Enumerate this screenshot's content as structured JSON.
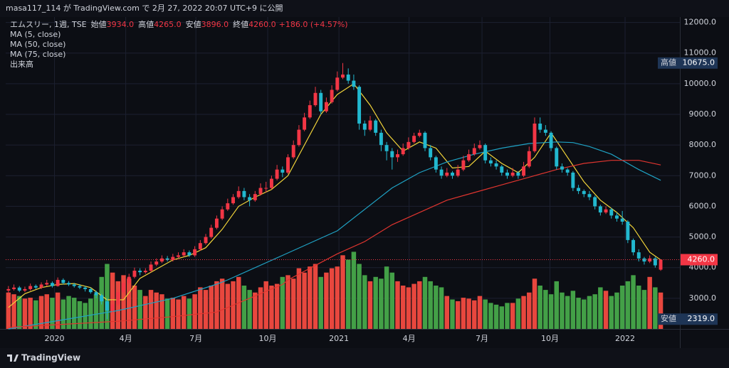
{
  "chart_data": {
    "type": "candlestick",
    "header": "masa117_114 が TradingView.com で 2月 27, 2022 20:07 UTC+9 に公開",
    "title": "エムスリー, 1週, TSE",
    "ohlc_legend": [
      {
        "label": "始値",
        "value": "3934.0"
      },
      {
        "label": "高値",
        "value": "4265.0"
      },
      {
        "label": "安値",
        "value": "3896.0"
      },
      {
        "label": "終値",
        "value": "4260.0"
      }
    ],
    "change": "+186.0 (+4.57%)",
    "up_color": "#f23645",
    "down_color": "#22b8cf",
    "candles": [
      [
        3250,
        3400,
        3150,
        3300
      ],
      [
        3300,
        3450,
        3250,
        3350
      ],
      [
        3350,
        3400,
        3200,
        3250
      ],
      [
        3250,
        3380,
        3200,
        3300
      ],
      [
        3300,
        3480,
        3250,
        3400
      ],
      [
        3400,
        3450,
        3300,
        3350
      ],
      [
        3350,
        3520,
        3300,
        3450
      ],
      [
        3450,
        3600,
        3400,
        3500
      ],
      [
        3500,
        3550,
        3350,
        3400
      ],
      [
        3400,
        3680,
        3380,
        3600
      ],
      [
        3600,
        3650,
        3450,
        3500
      ],
      [
        3500,
        3560,
        3400,
        3450
      ],
      [
        3450,
        3500,
        3350,
        3400
      ],
      [
        3400,
        3460,
        3300,
        3350
      ],
      [
        3350,
        3400,
        3220,
        3300
      ],
      [
        3300,
        3350,
        3150,
        3200
      ],
      [
        3200,
        3250,
        3000,
        3100
      ],
      [
        3100,
        3150,
        2800,
        2900
      ],
      [
        2900,
        3000,
        2319,
        2600
      ],
      [
        2600,
        2950,
        2500,
        2800
      ],
      [
        2800,
        3300,
        2750,
        3200
      ],
      [
        3200,
        3600,
        3150,
        3500
      ],
      [
        3500,
        3800,
        3450,
        3700
      ],
      [
        3700,
        4000,
        3650,
        3900
      ],
      [
        3900,
        3980,
        3750,
        3850
      ],
      [
        3850,
        3980,
        3800,
        3900
      ],
      [
        3900,
        4200,
        3850,
        4100
      ],
      [
        4100,
        4300,
        4050,
        4200
      ],
      [
        4200,
        4400,
        4150,
        4300
      ],
      [
        4300,
        4380,
        4200,
        4250
      ],
      [
        4250,
        4450,
        4200,
        4350
      ],
      [
        4350,
        4500,
        4300,
        4400
      ],
      [
        4400,
        4600,
        4350,
        4500
      ],
      [
        4500,
        4560,
        4350,
        4400
      ],
      [
        4400,
        4700,
        4350,
        4600
      ],
      [
        4600,
        4900,
        4550,
        4800
      ],
      [
        4800,
        5100,
        4750,
        5000
      ],
      [
        5000,
        5400,
        4950,
        5300
      ],
      [
        5300,
        5700,
        5250,
        5600
      ],
      [
        5600,
        6000,
        5550,
        5900
      ],
      [
        5900,
        6250,
        5850,
        6100
      ],
      [
        6100,
        6400,
        6050,
        6300
      ],
      [
        6300,
        6650,
        6250,
        6500
      ],
      [
        6500,
        6600,
        6200,
        6300
      ],
      [
        6300,
        6400,
        6000,
        6200
      ],
      [
        6200,
        6500,
        6150,
        6400
      ],
      [
        6400,
        6750,
        6350,
        6600
      ],
      [
        6600,
        6800,
        6450,
        6600
      ],
      [
        6600,
        7000,
        6550,
        6900
      ],
      [
        6900,
        7350,
        6850,
        7200
      ],
      [
        7200,
        7300,
        6950,
        7100
      ],
      [
        7100,
        7700,
        7050,
        7600
      ],
      [
        7600,
        8150,
        7550,
        8000
      ],
      [
        8000,
        8650,
        7950,
        8500
      ],
      [
        8500,
        9050,
        8450,
        8900
      ],
      [
        8900,
        9450,
        8850,
        9300
      ],
      [
        9300,
        9900,
        9250,
        9700
      ],
      [
        9700,
        9800,
        9000,
        9100
      ],
      [
        9100,
        9550,
        9050,
        9400
      ],
      [
        9400,
        9950,
        9350,
        9800
      ],
      [
        9800,
        10400,
        9750,
        10200
      ],
      [
        10200,
        10675,
        10150,
        10300
      ],
      [
        10300,
        10500,
        10000,
        10100
      ],
      [
        10100,
        10300,
        9800,
        9900
      ],
      [
        9900,
        9950,
        8500,
        8700
      ],
      [
        8700,
        8800,
        8300,
        8500
      ],
      [
        8500,
        8950,
        8450,
        8800
      ],
      [
        8800,
        8850,
        8300,
        8400
      ],
      [
        8400,
        8500,
        7800,
        8000
      ],
      [
        8000,
        8100,
        7500,
        7800
      ],
      [
        7800,
        7900,
        7200,
        7600
      ],
      [
        7600,
        7850,
        7450,
        7700
      ],
      [
        7700,
        8050,
        7650,
        7900
      ],
      [
        7900,
        8250,
        7850,
        8100
      ],
      [
        8100,
        8400,
        8050,
        8300
      ],
      [
        8300,
        8500,
        8250,
        8400
      ],
      [
        8400,
        8450,
        7800,
        7900
      ],
      [
        7900,
        8000,
        7500,
        7600
      ],
      [
        7600,
        7650,
        7100,
        7200
      ],
      [
        7200,
        7300,
        6900,
        7000
      ],
      [
        7000,
        7250,
        6950,
        7100
      ],
      [
        7100,
        7150,
        6900,
        7000
      ],
      [
        7000,
        7350,
        6950,
        7200
      ],
      [
        7200,
        7650,
        7150,
        7500
      ],
      [
        7500,
        7850,
        7450,
        7700
      ],
      [
        7700,
        8050,
        7650,
        7900
      ],
      [
        7900,
        8150,
        7850,
        8000
      ],
      [
        8000,
        8050,
        7400,
        7500
      ],
      [
        7500,
        7600,
        7300,
        7400
      ],
      [
        7400,
        7500,
        7200,
        7300
      ],
      [
        7300,
        7350,
        7000,
        7100
      ],
      [
        7100,
        7200,
        6900,
        7000
      ],
      [
        7000,
        7250,
        6950,
        7100
      ],
      [
        7100,
        7150,
        6900,
        7000
      ],
      [
        7000,
        7450,
        6950,
        7300
      ],
      [
        7300,
        7950,
        7250,
        7800
      ],
      [
        7800,
        8900,
        7750,
        8700
      ],
      [
        8700,
        8900,
        8400,
        8500
      ],
      [
        8500,
        8650,
        8300,
        8400
      ],
      [
        8400,
        8450,
        7800,
        7900
      ],
      [
        7900,
        7950,
        7200,
        7300
      ],
      [
        7300,
        7400,
        7100,
        7200
      ],
      [
        7200,
        7250,
        7000,
        7100
      ],
      [
        7100,
        7150,
        6500,
        6600
      ],
      [
        6600,
        6700,
        6400,
        6500
      ],
      [
        6500,
        6550,
        6300,
        6400
      ],
      [
        6400,
        6500,
        6200,
        6300
      ],
      [
        6300,
        6350,
        5900,
        6000
      ],
      [
        6000,
        6050,
        5700,
        5800
      ],
      [
        5800,
        6000,
        5750,
        5900
      ],
      [
        5900,
        5950,
        5600,
        5700
      ],
      [
        5700,
        5800,
        5500,
        5600
      ],
      [
        5600,
        5850,
        5400,
        5500
      ],
      [
        5500,
        5550,
        4800,
        4900
      ],
      [
        4900,
        4950,
        4400,
        4500
      ],
      [
        4500,
        4600,
        4200,
        4300
      ],
      [
        4300,
        4350,
        4100,
        4200
      ],
      [
        4200,
        4400,
        4150,
        4300
      ],
      [
        4300,
        4350,
        4000,
        4074
      ],
      [
        3934,
        4265,
        3896,
        4260
      ]
    ],
    "volume": {
      "name": "出来高",
      "ylim": [
        0,
        100
      ],
      "up_color": "#e8473e",
      "down_color": "#43a047",
      "values": [
        42,
        40,
        38,
        35,
        36,
        33,
        38,
        40,
        36,
        42,
        34,
        38,
        36,
        32,
        30,
        35,
        40,
        60,
        75,
        65,
        55,
        62,
        58,
        50,
        45,
        38,
        45,
        42,
        40,
        35,
        36,
        34,
        38,
        35,
        40,
        48,
        45,
        50,
        55,
        58,
        52,
        55,
        60,
        50,
        45,
        42,
        48,
        55,
        50,
        52,
        60,
        62,
        58,
        70,
        65,
        72,
        75,
        60,
        65,
        70,
        72,
        85,
        80,
        89,
        75,
        62,
        55,
        60,
        58,
        72,
        65,
        55,
        50,
        48,
        52,
        55,
        60,
        55,
        50,
        48,
        38,
        34,
        32,
        36,
        35,
        33,
        38,
        34,
        30,
        28,
        26,
        30,
        30,
        35,
        38,
        42,
        58,
        50,
        45,
        40,
        55,
        42,
        38,
        44,
        36,
        34,
        38,
        40,
        48,
        44,
        38,
        42,
        50,
        55,
        62,
        50,
        45,
        60,
        48,
        42
      ]
    },
    "ma": [
      {
        "name": "MA (5, close)",
        "color": "#f2d43a",
        "x": [
          0,
          3,
          6,
          9,
          12,
          15,
          18,
          21,
          24,
          27,
          30,
          33,
          36,
          39,
          42,
          45,
          48,
          51,
          54,
          57,
          60,
          63,
          66,
          69,
          72,
          75,
          78,
          81,
          84,
          87,
          90,
          93,
          96,
          99,
          102,
          105,
          108,
          111,
          114,
          117,
          119
        ],
        "values": [
          2700,
          3150,
          3350,
          3450,
          3480,
          3350,
          2950,
          2950,
          3650,
          3950,
          4250,
          4400,
          4650,
          5250,
          6000,
          6300,
          6550,
          7000,
          8000,
          9000,
          9650,
          10000,
          9300,
          8400,
          7800,
          8100,
          7900,
          7250,
          7300,
          7800,
          7400,
          7100,
          7600,
          8400,
          7600,
          6800,
          6200,
          5800,
          5300,
          4500,
          4250
        ]
      },
      {
        "name": "MA (50, close)",
        "color": "#1fa2c4",
        "x": [
          0,
          10,
          20,
          30,
          38,
          40,
          50,
          60,
          65,
          70,
          75,
          80,
          85,
          90,
          95,
          100,
          103,
          106,
          110,
          115,
          119
        ],
        "values": [
          2000,
          2300,
          2600,
          3000,
          3460,
          3600,
          4400,
          5200,
          5900,
          6600,
          7100,
          7450,
          7700,
          7900,
          8050,
          8100,
          8080,
          7950,
          7700,
          7200,
          6850
        ]
      },
      {
        "name": "MA (75, close)",
        "color": "#e0352f",
        "x": [
          0,
          10,
          20,
          30,
          38,
          50,
          51,
          60,
          65,
          70,
          75,
          80,
          85,
          90,
          95,
          100,
          105,
          110,
          115,
          119
        ],
        "values": [
          2050,
          2150,
          2250,
          2400,
          2550,
          3450,
          3600,
          4450,
          4850,
          5400,
          5800,
          6200,
          6450,
          6700,
          6950,
          7200,
          7400,
          7500,
          7500,
          7350
        ]
      }
    ],
    "xlim": [
      -0.5,
      122.5
    ],
    "xticks": [
      {
        "value": 8.4,
        "label": "2020"
      },
      {
        "value": 21.4,
        "label": "4月"
      },
      {
        "value": 34.2,
        "label": "7月"
      },
      {
        "value": 47.3,
        "label": "10月"
      },
      {
        "value": 60.3,
        "label": "2021"
      },
      {
        "value": 73.1,
        "label": "4月"
      },
      {
        "value": 86.4,
        "label": "7月"
      },
      {
        "value": 98.8,
        "label": "10月"
      },
      {
        "value": 112.5,
        "label": "2022"
      }
    ],
    "ylim": [
      2000,
      12500
    ],
    "yticks": [
      {
        "value": 3000,
        "label": "3000.0"
      },
      {
        "value": 4000,
        "label": "4000.0"
      },
      {
        "value": 5000,
        "label": "5000.0"
      },
      {
        "value": 6000,
        "label": "6000.0"
      },
      {
        "value": 7000,
        "label": "7000.0"
      },
      {
        "value": 8000,
        "label": "8000.0"
      },
      {
        "value": 9000,
        "label": "9000.0"
      },
      {
        "value": 10000,
        "label": "10000.0"
      },
      {
        "value": 11000,
        "label": "11000.0"
      },
      {
        "value": 12000,
        "label": "12000.0"
      }
    ],
    "grid": true,
    "price_labels": [
      {
        "name": "高値",
        "value": 10675,
        "label": "10675.0"
      },
      {
        "name": "安値",
        "value": 2319,
        "label": "2319.0"
      }
    ],
    "last_price": {
      "value": 4260,
      "label": "4260.0"
    },
    "footer": "TradingView"
  }
}
